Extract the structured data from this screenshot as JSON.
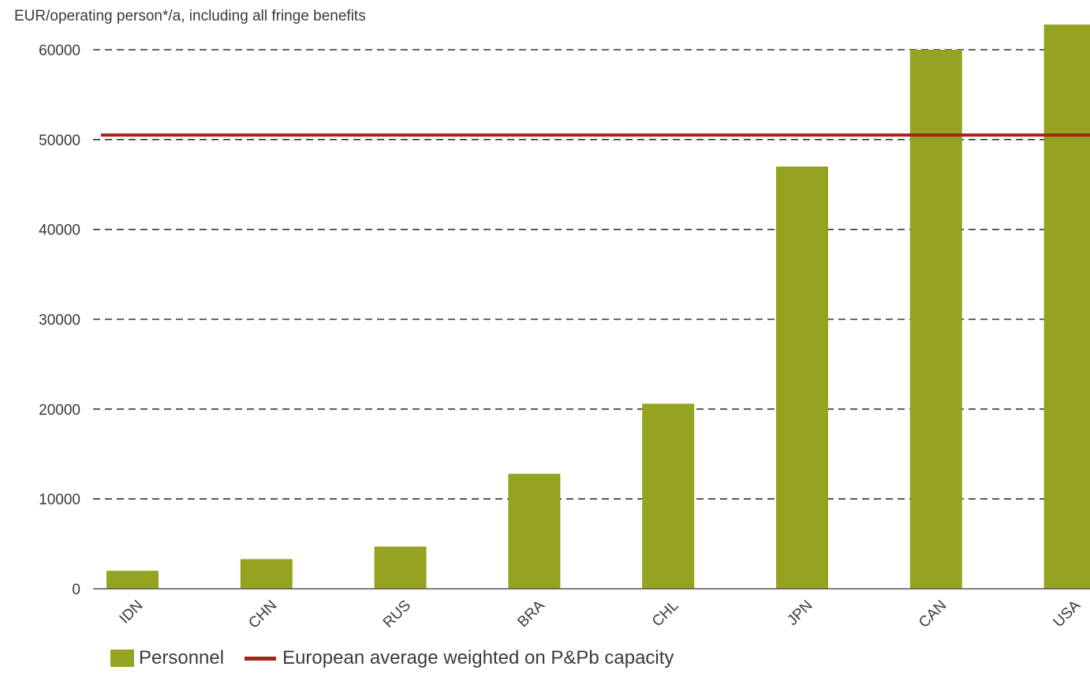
{
  "chart_data": {
    "type": "bar",
    "title": "",
    "ylabel": "EUR/operating person*/a, including all fringe benefits",
    "xlabel": "",
    "categories": [
      "IDN",
      "CHN",
      "RUS",
      "BRA",
      "CHL",
      "JPN",
      "CAN",
      "USA"
    ],
    "series": [
      {
        "name": "Personnel",
        "values": [
          2000,
          3300,
          4700,
          12800,
          20600,
          47000,
          60000,
          62800
        ],
        "color": "#95a321"
      }
    ],
    "reference_lines": [
      {
        "name": "European average weighted on P&Pb capacity",
        "value": 50500,
        "color": "#a3241c"
      }
    ],
    "ylim": [
      0,
      60000
    ],
    "yticks": [
      "0",
      "10000",
      "20000",
      "30000",
      "40000",
      "50000",
      "60000"
    ],
    "ytick_values": [
      0,
      10000,
      20000,
      30000,
      40000,
      50000,
      60000
    ],
    "grid": true,
    "grid_style": "dashed",
    "legend_position": "bottom-left"
  }
}
